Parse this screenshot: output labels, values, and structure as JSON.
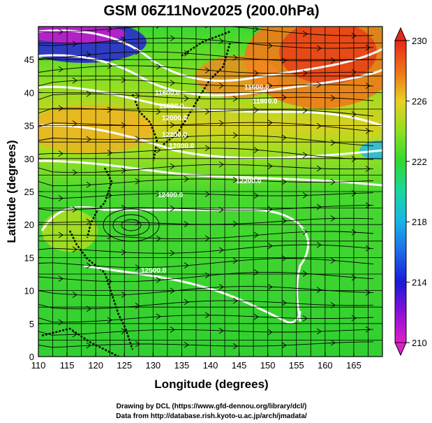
{
  "title": "GSM 06Z11Nov2025 (200.0hPa)",
  "xlabel": "Longitude (degrees)",
  "ylabel": "Latitude  (degrees)",
  "x_ticks": [
    "110",
    "115",
    "120",
    "125",
    "130",
    "135",
    "140",
    "145",
    "150",
    "155",
    "160",
    "165"
  ],
  "y_ticks": [
    "0",
    "5",
    "10",
    "15",
    "20",
    "25",
    "30",
    "35",
    "40",
    "45"
  ],
  "colorbar_ticks": [
    "230",
    "226",
    "222",
    "218",
    "214",
    "210"
  ],
  "contour_labels": [
    "11600.0",
    "11600.0",
    "11800.0",
    "11800.0",
    "12000.0",
    "12000.0",
    "12200.0",
    "12200.0",
    "12400.0",
    "12500.0"
  ],
  "credit_lines": [
    "Drawing by DCL (https://www.gfd-dennou.org/library/dcl/)",
    "Data from http://database.rish.kyoto-u.ac.jp/arch/jmadata/"
  ],
  "chart_data": {
    "type": "heatmap",
    "title": "GSM 06Z11Nov2025 (200.0hPa)",
    "xlabel": "Longitude (degrees)",
    "ylabel": "Latitude  (degrees)",
    "xlim": [
      110,
      170
    ],
    "ylim": [
      0,
      50
    ],
    "x_ticks": [
      110,
      115,
      120,
      125,
      130,
      135,
      140,
      145,
      150,
      155,
      160,
      165
    ],
    "y_ticks": [
      0,
      5,
      10,
      15,
      20,
      25,
      30,
      35,
      40,
      45
    ],
    "colorbar": {
      "min": 210,
      "max": 230,
      "ticks": [
        210,
        214,
        218,
        222,
        226,
        230
      ]
    },
    "contour_levels": [
      11600,
      11800,
      12000,
      12200,
      12400,
      12500
    ],
    "grid": true
  }
}
